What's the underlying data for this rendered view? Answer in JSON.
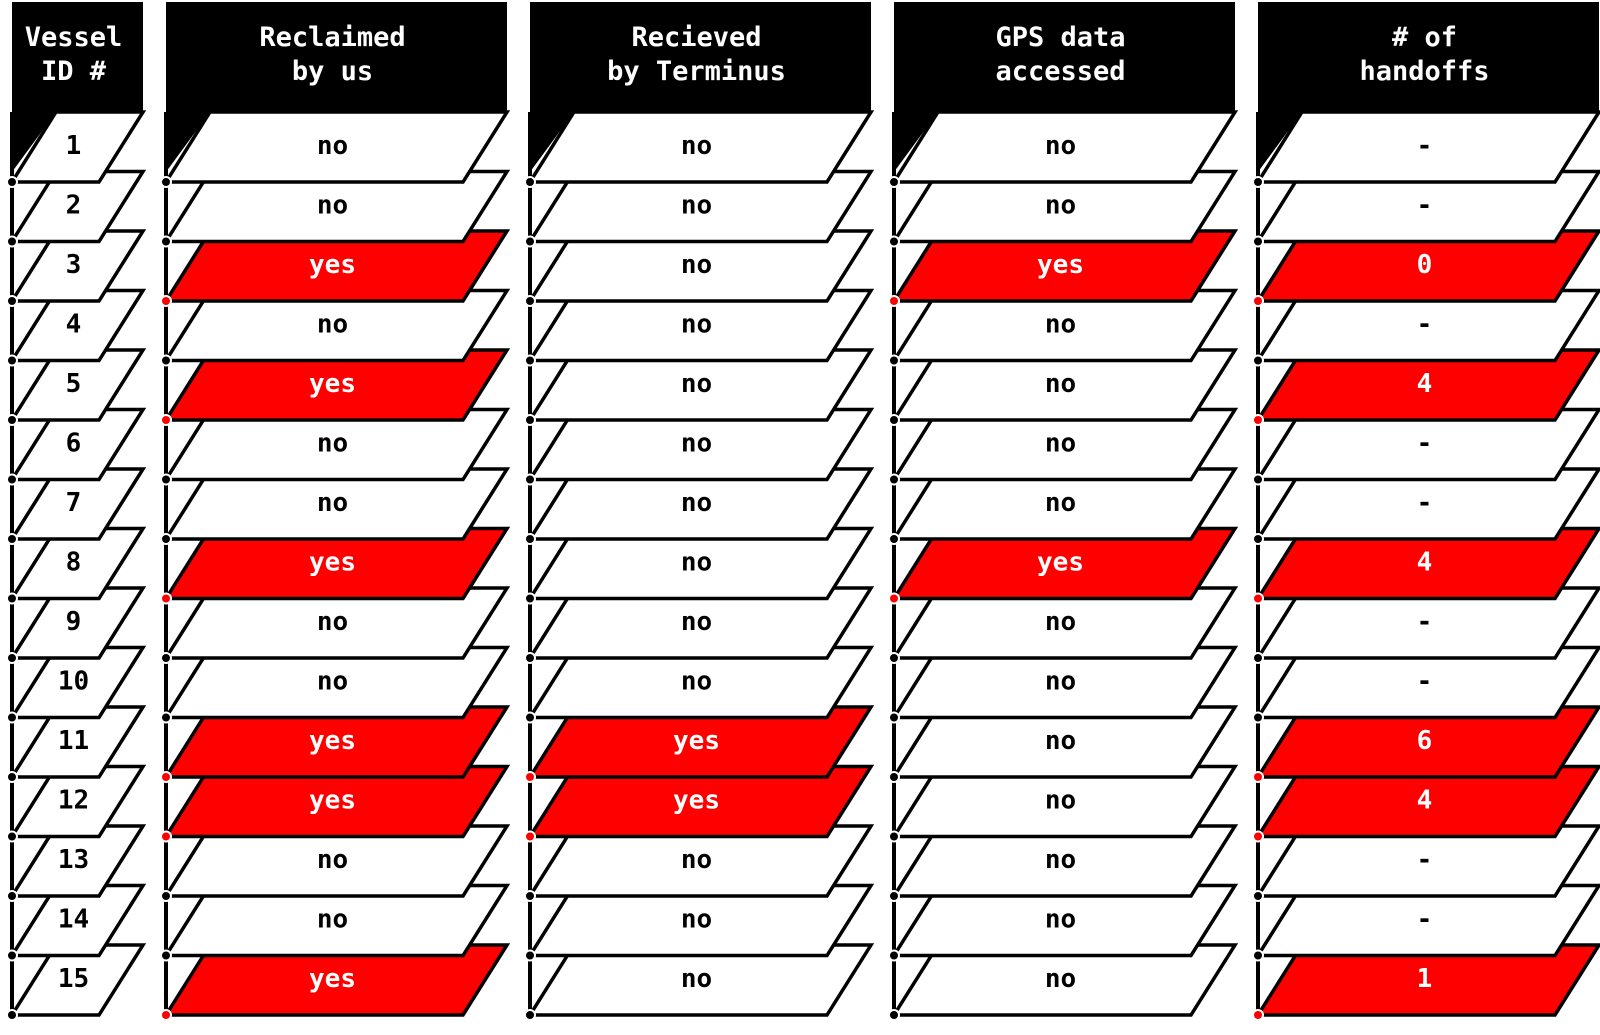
{
  "colors": {
    "header_bg": "#000000",
    "header_text": "#ffffff",
    "cell_bg": "#ffffff",
    "cell_text": "#000000",
    "highlight_bg": "#ff0000",
    "highlight_text": "#ffffff",
    "outline": "#000000"
  },
  "columns": [
    {
      "key": "vessel",
      "header_lines": [
        "Vessel",
        "ID #"
      ]
    },
    {
      "key": "reclaimed",
      "header_lines": [
        "Reclaimed",
        "by us"
      ]
    },
    {
      "key": "received",
      "header_lines": [
        "Recieved",
        "by Terminus"
      ]
    },
    {
      "key": "gps",
      "header_lines": [
        "GPS data",
        "accessed"
      ]
    },
    {
      "key": "handoffs",
      "header_lines": [
        "# of",
        "handoffs"
      ]
    }
  ],
  "rows": [
    {
      "vessel": "1",
      "reclaimed": "no",
      "received": "no",
      "gps": "no",
      "handoffs": "-"
    },
    {
      "vessel": "2",
      "reclaimed": "no",
      "received": "no",
      "gps": "no",
      "handoffs": "-"
    },
    {
      "vessel": "3",
      "reclaimed": "yes",
      "received": "no",
      "gps": "yes",
      "handoffs": "0"
    },
    {
      "vessel": "4",
      "reclaimed": "no",
      "received": "no",
      "gps": "no",
      "handoffs": "-"
    },
    {
      "vessel": "5",
      "reclaimed": "yes",
      "received": "no",
      "gps": "no",
      "handoffs": "4"
    },
    {
      "vessel": "6",
      "reclaimed": "no",
      "received": "no",
      "gps": "no",
      "handoffs": "-"
    },
    {
      "vessel": "7",
      "reclaimed": "no",
      "received": "no",
      "gps": "no",
      "handoffs": "-"
    },
    {
      "vessel": "8",
      "reclaimed": "yes",
      "received": "no",
      "gps": "yes",
      "handoffs": "4"
    },
    {
      "vessel": "9",
      "reclaimed": "no",
      "received": "no",
      "gps": "no",
      "handoffs": "-"
    },
    {
      "vessel": "10",
      "reclaimed": "no",
      "received": "no",
      "gps": "no",
      "handoffs": "-"
    },
    {
      "vessel": "11",
      "reclaimed": "yes",
      "received": "yes",
      "gps": "no",
      "handoffs": "6"
    },
    {
      "vessel": "12",
      "reclaimed": "yes",
      "received": "yes",
      "gps": "no",
      "handoffs": "4"
    },
    {
      "vessel": "13",
      "reclaimed": "no",
      "received": "no",
      "gps": "no",
      "handoffs": "-"
    },
    {
      "vessel": "14",
      "reclaimed": "no",
      "received": "no",
      "gps": "no",
      "handoffs": "-"
    },
    {
      "vessel": "15",
      "reclaimed": "yes",
      "received": "no",
      "gps": "no",
      "handoffs": "1"
    }
  ]
}
